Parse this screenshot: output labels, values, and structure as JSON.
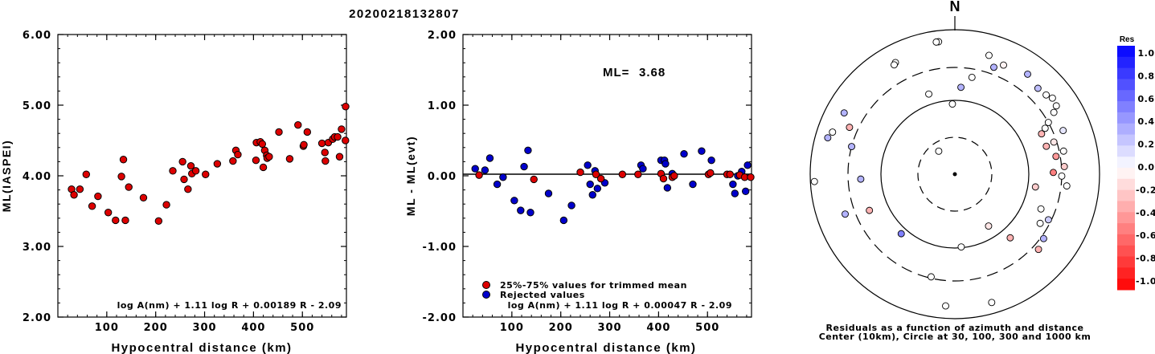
{
  "title": "20200218132807",
  "north_label": "N",
  "chart_data": [
    {
      "id": "ml-vs-distance",
      "type": "scatter",
      "xlabel": "Hypocentral distance (km)",
      "ylabel": "ML(IASPEI)",
      "xlim": [
        0,
        590
      ],
      "ylim": [
        2.0,
        6.0
      ],
      "x_ticks": [
        100,
        200,
        300,
        400,
        500
      ],
      "y_ticks": [
        "2.00",
        "3.00",
        "4.00",
        "5.00",
        "6.00"
      ],
      "formula": "log A(nm) + 1.11 log R + 0.00189 R - 2.09",
      "color": "#dd0000",
      "points": [
        [
          28,
          3.81
        ],
        [
          33,
          3.73
        ],
        [
          45,
          3.81
        ],
        [
          58,
          4.02
        ],
        [
          70,
          3.57
        ],
        [
          82,
          3.71
        ],
        [
          103,
          3.48
        ],
        [
          118,
          3.37
        ],
        [
          130,
          3.99
        ],
        [
          134,
          4.23
        ],
        [
          138,
          3.37
        ],
        [
          145,
          3.84
        ],
        [
          175,
          3.69
        ],
        [
          206,
          3.36
        ],
        [
          222,
          3.59
        ],
        [
          235,
          4.07
        ],
        [
          255,
          4.2
        ],
        [
          258,
          3.95
        ],
        [
          266,
          3.81
        ],
        [
          272,
          4.14
        ],
        [
          274,
          4.03
        ],
        [
          282,
          4.07
        ],
        [
          302,
          4.02
        ],
        [
          326,
          4.17
        ],
        [
          358,
          4.21
        ],
        [
          364,
          4.36
        ],
        [
          368,
          4.3
        ],
        [
          405,
          4.22
        ],
        [
          406,
          4.47
        ],
        [
          414,
          4.48
        ],
        [
          418,
          4.45
        ],
        [
          420,
          4.12
        ],
        [
          423,
          4.36
        ],
        [
          427,
          4.29
        ],
        [
          428,
          4.25
        ],
        [
          432,
          4.27
        ],
        [
          452,
          4.62
        ],
        [
          474,
          4.24
        ],
        [
          491,
          4.72
        ],
        [
          502,
          4.42
        ],
        [
          503,
          4.44
        ],
        [
          510,
          4.62
        ],
        [
          540,
          4.46
        ],
        [
          546,
          4.33
        ],
        [
          547,
          4.21
        ],
        [
          553,
          4.47
        ],
        [
          562,
          4.52
        ],
        [
          566,
          4.55
        ],
        [
          572,
          4.55
        ],
        [
          576,
          4.27
        ],
        [
          580,
          4.66
        ],
        [
          588,
          4.5
        ],
        [
          595,
          4.98
        ]
      ]
    },
    {
      "id": "residual-vs-distance",
      "type": "scatter",
      "xlabel": "Hypocentral distance (km)",
      "ylabel": "ML - ML(evt)",
      "xlim": [
        0,
        590
      ],
      "ylim": [
        -2.0,
        2.0
      ],
      "x_ticks": [
        100,
        200,
        300,
        400,
        500
      ],
      "y_ticks": [
        "-2.00",
        "-1.00",
        "0.00",
        "1.00",
        "2.00"
      ],
      "ml_label": "ML=",
      "ml_value": "3.68",
      "formula": "log A(nm) + 1.11 log R + 0.00047 R - 2.09",
      "legend": [
        {
          "label": "25%-75% values for trimmed mean",
          "color": "#dd0000"
        },
        {
          "label": "Rejected values",
          "color": "#0000cc"
        }
      ],
      "trimmed_points": [
        [
          33,
          0.01
        ],
        [
          145,
          -0.05
        ],
        [
          240,
          0.05
        ],
        [
          272,
          0.02
        ],
        [
          282,
          -0.04
        ],
        [
          326,
          0.02
        ],
        [
          358,
          0.02
        ],
        [
          405,
          0.03
        ],
        [
          410,
          -0.04
        ],
        [
          428,
          -0.02
        ],
        [
          432,
          0.0
        ],
        [
          502,
          0.02
        ],
        [
          506,
          0.04
        ],
        [
          540,
          0.02
        ],
        [
          546,
          0.02
        ],
        [
          566,
          0.01
        ],
        [
          576,
          -0.02
        ],
        [
          590,
          -0.02
        ]
      ],
      "rejected_points": [
        [
          25,
          0.1
        ],
        [
          45,
          0.08
        ],
        [
          55,
          0.25
        ],
        [
          70,
          -0.12
        ],
        [
          82,
          -0.02
        ],
        [
          105,
          -0.35
        ],
        [
          118,
          -0.49
        ],
        [
          125,
          0.13
        ],
        [
          133,
          0.36
        ],
        [
          138,
          -0.52
        ],
        [
          175,
          -0.25
        ],
        [
          206,
          -0.63
        ],
        [
          222,
          -0.42
        ],
        [
          255,
          0.15
        ],
        [
          260,
          -0.12
        ],
        [
          265,
          -0.27
        ],
        [
          270,
          0.07
        ],
        [
          275,
          -0.18
        ],
        [
          290,
          -0.1
        ],
        [
          364,
          0.15
        ],
        [
          368,
          0.1
        ],
        [
          405,
          0.22
        ],
        [
          412,
          0.22
        ],
        [
          414,
          0.17
        ],
        [
          418,
          -0.17
        ],
        [
          428,
          0.03
        ],
        [
          452,
          0.31
        ],
        [
          470,
          -0.12
        ],
        [
          488,
          0.35
        ],
        [
          508,
          0.22
        ],
        [
          552,
          -0.12
        ],
        [
          556,
          -0.25
        ],
        [
          562,
          0.0
        ],
        [
          570,
          0.06
        ],
        [
          578,
          -0.22
        ],
        [
          582,
          0.15
        ]
      ]
    },
    {
      "id": "azimuth-residual-map",
      "type": "scatter",
      "caption_line1": "Residuals as a function of azimuth and distance",
      "caption_line2": "Center (10km), Circle at 30, 100, 300 and 1000 km",
      "colorbar_title": "Res",
      "colorbar_ticks": [
        "1.0",
        "0.8",
        "0.6",
        "0.4",
        "0.2",
        "0.0",
        "-0.2",
        "-0.4",
        "-0.6",
        "-0.8",
        "-1.0"
      ],
      "stations_az_r": [
        [
          353,
          0.95,
          0.0
        ],
        [
          352,
          0.95,
          0.0
        ],
        [
          332,
          0.9,
          0.0
        ],
        [
          331,
          0.89,
          0.0
        ],
        [
          16,
          0.88,
          0.0
        ],
        [
          24,
          0.85,
          -0.05
        ],
        [
          36,
          0.88,
          0.3
        ],
        [
          44,
          0.85,
          0.25
        ],
        [
          49,
          0.86,
          0.0
        ],
        [
          52,
          0.88,
          0.0
        ],
        [
          56,
          0.87,
          0.0
        ],
        [
          58,
          0.83,
          0.0
        ],
        [
          61,
          0.76,
          0.0
        ],
        [
          63,
          0.72,
          0.0
        ],
        [
          65,
          0.68,
          -0.3
        ],
        [
          68,
          0.83,
          0.1
        ],
        [
          72,
          0.74,
          -0.1
        ],
        [
          73,
          0.68,
          -0.3
        ],
        [
          78,
          0.79,
          0.0
        ],
        [
          80,
          0.73,
          -0.4
        ],
        [
          86,
          0.78,
          -0.2
        ],
        [
          89,
          0.7,
          -0.5
        ],
        [
          91,
          0.76,
          0.0
        ],
        [
          96,
          0.8,
          0.0
        ],
        [
          99,
          0.58,
          -0.2
        ],
        [
          112,
          0.66,
          0.0
        ],
        [
          116,
          0.74,
          0.2
        ],
        [
          120,
          0.7,
          0.0
        ],
        [
          126,
          0.78,
          0.3
        ],
        [
          132,
          0.8,
          -0.3
        ],
        [
          139,
          0.6,
          -0.3
        ],
        [
          147,
          0.44,
          -0.1
        ],
        [
          164,
          0.95,
          0.0
        ],
        [
          175,
          0.52,
          0.0
        ],
        [
          184,
          0.94,
          0.0
        ],
        [
          193,
          0.75,
          0.0
        ],
        [
          222,
          0.57,
          0.5
        ],
        [
          247,
          0.66,
          -0.3
        ],
        [
          250,
          0.83,
          0.3
        ],
        [
          267,
          1.0,
          0.0
        ],
        [
          267,
          0.67,
          0.3
        ],
        [
          285,
          0.76,
          0.3
        ],
        [
          286,
          0.94,
          0.3
        ],
        [
          289,
          0.92,
          0.0
        ],
        [
          294,
          0.82,
          -0.3
        ],
        [
          299,
          0.9,
          0.3
        ],
        [
          325,
          0.2,
          0.0
        ],
        [
          342,
          0.6,
          0.0
        ],
        [
          358,
          0.5,
          0.0
        ],
        [
          4,
          0.62,
          0.3
        ],
        [
          10,
          0.7,
          0.0
        ],
        [
          20,
          0.81,
          0.3
        ]
      ]
    }
  ]
}
